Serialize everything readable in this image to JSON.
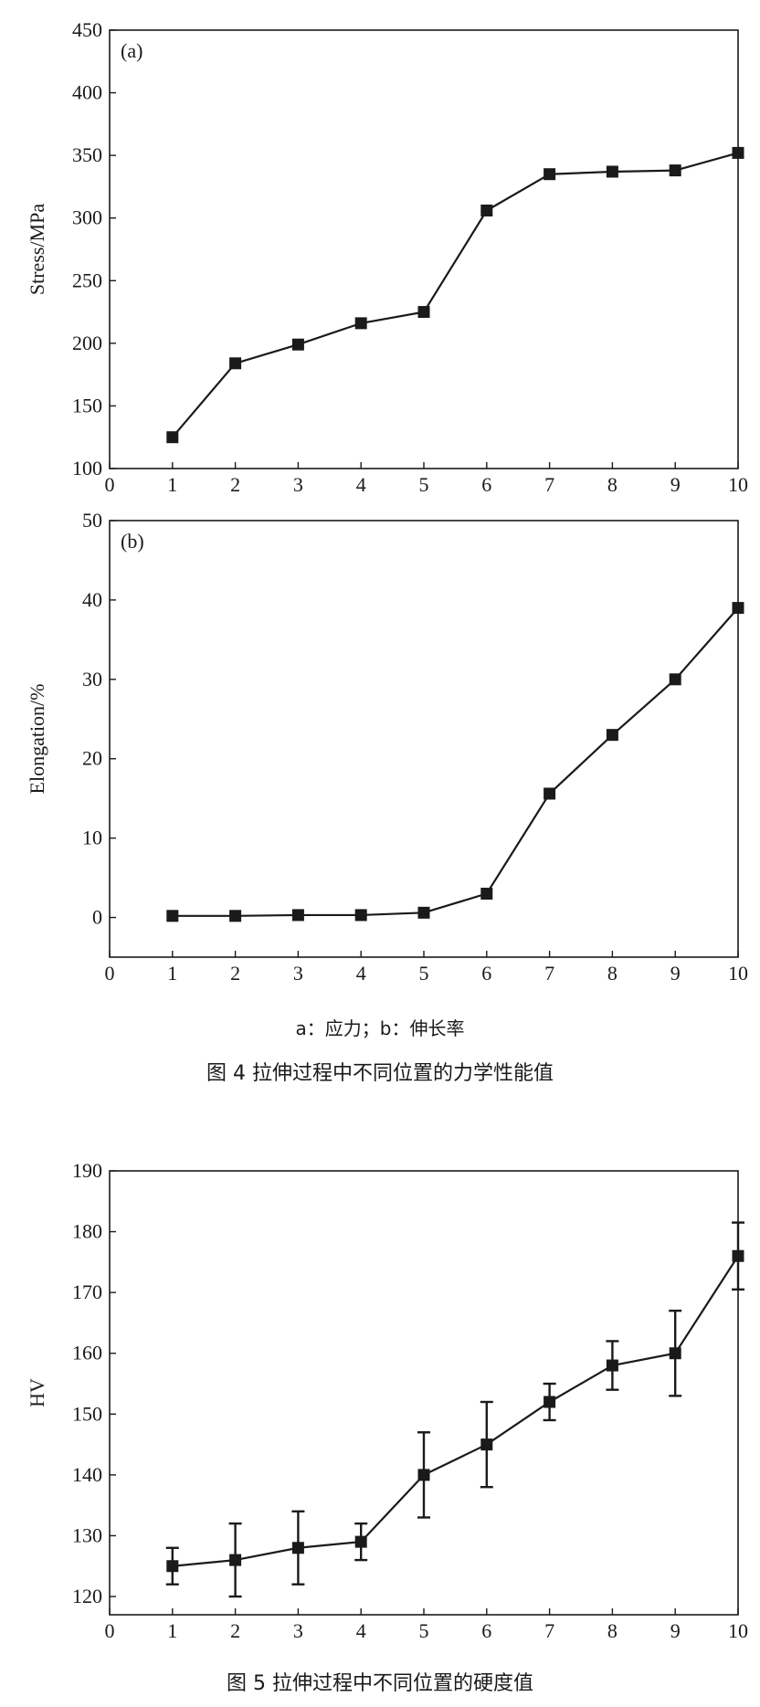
{
  "chart_data": [
    {
      "type": "line",
      "panel_label": "(a)",
      "ylabel": "Stress/MPa",
      "x": [
        1,
        2,
        3,
        4,
        5,
        6,
        7,
        8,
        9,
        10
      ],
      "y": [
        125,
        184,
        199,
        216,
        225,
        306,
        335,
        337,
        338,
        352
      ],
      "xlim": [
        0,
        10
      ],
      "ylim": [
        100,
        450
      ],
      "xticks": [
        0,
        1,
        2,
        3,
        4,
        5,
        6,
        7,
        8,
        9,
        10
      ],
      "yticks": [
        100,
        150,
        200,
        250,
        300,
        350,
        400,
        450
      ],
      "grid": false
    },
    {
      "type": "line",
      "panel_label": "(b)",
      "ylabel": "Elongation/%",
      "x": [
        1,
        2,
        3,
        4,
        5,
        6,
        7,
        8,
        9,
        10
      ],
      "y": [
        0.2,
        0.2,
        0.3,
        0.3,
        0.6,
        3.0,
        15.6,
        23.0,
        30.0,
        39.0
      ],
      "xlim": [
        0,
        10
      ],
      "ylim": [
        -5,
        50
      ],
      "xticks": [
        0,
        1,
        2,
        3,
        4,
        5,
        6,
        7,
        8,
        9,
        10
      ],
      "yticks": [
        0,
        10,
        20,
        30,
        40,
        50
      ],
      "grid": false
    },
    {
      "type": "line",
      "ylabel": "HV",
      "x": [
        1,
        2,
        3,
        4,
        5,
        6,
        7,
        8,
        9,
        10
      ],
      "y": [
        125,
        126,
        128,
        129,
        140,
        145,
        152,
        158,
        160,
        176
      ],
      "error": [
        3,
        6,
        6,
        3,
        7,
        7,
        3,
        4,
        7,
        5.5
      ],
      "xlim": [
        0,
        10
      ],
      "ylim": [
        117,
        190
      ],
      "xticks": [
        0,
        1,
        2,
        3,
        4,
        5,
        6,
        7,
        8,
        9,
        10
      ],
      "yticks": [
        120,
        130,
        140,
        150,
        160,
        170,
        180,
        190
      ],
      "grid": false
    }
  ],
  "captions": {
    "subcaption4": "a：应力；b：伸长率",
    "figure4": "图 4   拉伸过程中不同位置的力学性能值",
    "figure5": "图 5   拉伸过程中不同位置的硬度值"
  }
}
